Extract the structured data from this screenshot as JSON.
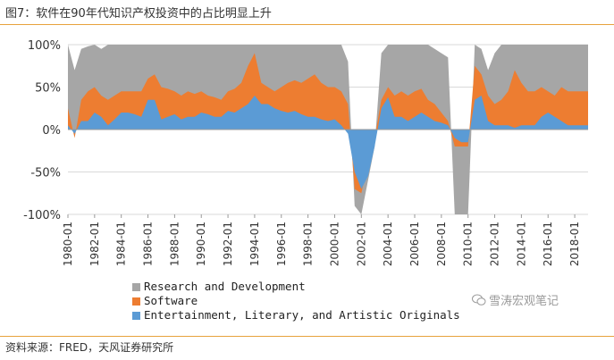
{
  "figure": {
    "title": "图7：软件在90年代知识产权投资中的占比明显上升",
    "source": "资料来源：FRED，天风证券研究所",
    "watermark": "雪涛宏观笔记"
  },
  "colors": {
    "rd": "#a6a6a6",
    "software": "#ed7d31",
    "ent": "#5b9bd5",
    "accent_rule": "#e7a23c"
  },
  "chart_data": {
    "type": "area",
    "title": "",
    "xlabel": "",
    "ylabel": "",
    "ylim": [
      -100,
      100
    ],
    "yticks": [
      "100%",
      "50%",
      "0%",
      "-50%",
      "-100%"
    ],
    "ytick_values": [
      100,
      50,
      0,
      -50,
      -100
    ],
    "xticks": [
      "1980-01",
      "1982-01",
      "1984-01",
      "1986-01",
      "1988-01",
      "1990-01",
      "1992-01",
      "1994-01",
      "1996-01",
      "1998-01",
      "2000-01",
      "2002-01",
      "2004-01",
      "2006-01",
      "2008-01",
      "2010-01",
      "2012-01",
      "2014-01",
      "2016-01",
      "2018-01"
    ],
    "grid": "horizontal",
    "legend_position": "bottom",
    "x": [
      "1980-01",
      "1980-07",
      "1981-01",
      "1981-07",
      "1982-01",
      "1982-07",
      "1983-01",
      "1983-07",
      "1984-01",
      "1984-07",
      "1985-01",
      "1985-07",
      "1986-01",
      "1986-07",
      "1987-01",
      "1987-07",
      "1988-01",
      "1988-07",
      "1989-01",
      "1989-07",
      "1990-01",
      "1990-07",
      "1991-01",
      "1991-07",
      "1992-01",
      "1992-07",
      "1993-01",
      "1993-07",
      "1994-01",
      "1994-07",
      "1995-01",
      "1995-07",
      "1996-01",
      "1996-07",
      "1997-01",
      "1997-07",
      "1998-01",
      "1998-07",
      "1999-01",
      "1999-07",
      "2000-01",
      "2000-07",
      "2001-01",
      "2001-07",
      "2002-01",
      "2002-07",
      "2003-01",
      "2003-07",
      "2004-01",
      "2004-07",
      "2005-01",
      "2005-07",
      "2006-01",
      "2006-07",
      "2007-01",
      "2007-07",
      "2008-01",
      "2008-07",
      "2009-01",
      "2009-07",
      "2010-01",
      "2010-07",
      "2011-01",
      "2011-07",
      "2012-01",
      "2012-07",
      "2013-01",
      "2013-07",
      "2014-01",
      "2014-07",
      "2015-01",
      "2015-07",
      "2016-01",
      "2016-07",
      "2017-01",
      "2017-07",
      "2018-01",
      "2018-07",
      "2019-01"
    ],
    "series": [
      {
        "name": "Entertainment, Literary, and Artistic Originals",
        "key": "ent",
        "values": [
          5,
          -5,
          10,
          10,
          20,
          15,
          5,
          12,
          20,
          20,
          18,
          15,
          35,
          35,
          12,
          15,
          18,
          12,
          15,
          15,
          20,
          18,
          15,
          15,
          22,
          20,
          25,
          30,
          40,
          30,
          30,
          25,
          22,
          20,
          22,
          18,
          15,
          15,
          12,
          10,
          12,
          5,
          -5,
          -50,
          -70,
          -55,
          -20,
          25,
          38,
          15,
          15,
          10,
          15,
          20,
          15,
          10,
          8,
          5,
          -10,
          -15,
          -15,
          35,
          40,
          10,
          5,
          5,
          5,
          2,
          5,
          5,
          5,
          15,
          20,
          15,
          10,
          5,
          5,
          5,
          5
        ]
      },
      {
        "name": "Software",
        "key": "software",
        "values": [
          25,
          -10,
          35,
          45,
          50,
          40,
          35,
          40,
          45,
          45,
          45,
          45,
          60,
          65,
          50,
          48,
          45,
          40,
          45,
          42,
          45,
          40,
          38,
          35,
          45,
          48,
          55,
          75,
          90,
          55,
          50,
          45,
          50,
          55,
          58,
          55,
          60,
          65,
          55,
          50,
          50,
          45,
          30,
          -70,
          -75,
          -40,
          -10,
          35,
          50,
          40,
          45,
          40,
          45,
          48,
          35,
          30,
          20,
          10,
          -20,
          -20,
          -20,
          75,
          65,
          40,
          30,
          35,
          45,
          70,
          55,
          45,
          45,
          50,
          45,
          40,
          50,
          45,
          45,
          45,
          45
        ]
      },
      {
        "name": "Research and Development",
        "key": "rd",
        "values": [
          100,
          70,
          95,
          98,
          100,
          95,
          100,
          100,
          100,
          100,
          100,
          100,
          100,
          100,
          100,
          100,
          100,
          100,
          100,
          100,
          100,
          100,
          100,
          100,
          100,
          100,
          100,
          100,
          100,
          100,
          100,
          100,
          100,
          100,
          100,
          100,
          100,
          100,
          100,
          100,
          100,
          100,
          80,
          -90,
          -100,
          -60,
          -20,
          90,
          100,
          100,
          100,
          100,
          100,
          100,
          100,
          95,
          90,
          85,
          -100,
          -100,
          -100,
          100,
          95,
          70,
          90,
          100,
          100,
          100,
          100,
          100,
          100,
          100,
          100,
          100,
          100,
          100,
          100,
          100,
          100
        ]
      }
    ]
  }
}
